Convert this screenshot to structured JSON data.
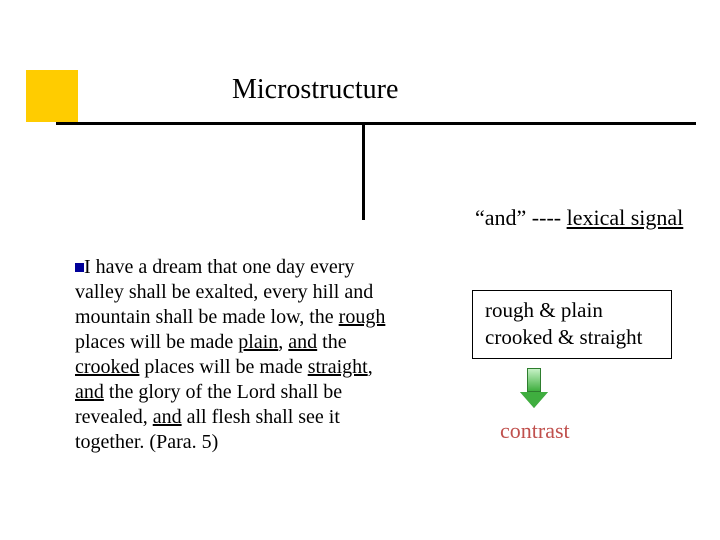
{
  "title": "Microstructure",
  "right_header_prefix": "“and” ---- ",
  "right_header_suffix": "lexical signal",
  "colors": {
    "accent_yellow": "#ffcc00",
    "bullet_navy": "#000099",
    "contrast_red": "#c0504d",
    "arrow_green": "#3fae3f",
    "text_black": "#000000"
  },
  "paragraph": {
    "segments": [
      {
        "t": "I have a dream that one day every valley shall be exalted, every hill and mountain shall be made low, the ",
        "u": false
      },
      {
        "t": "rough",
        "u": true
      },
      {
        "t": " places will be made ",
        "u": false
      },
      {
        "t": "plain",
        "u": true
      },
      {
        "t": ", ",
        "u": false
      },
      {
        "t": "and",
        "u": true
      },
      {
        "t": " the ",
        "u": false
      },
      {
        "t": "crooked",
        "u": true
      },
      {
        "t": " places will be made ",
        "u": false
      },
      {
        "t": "straight",
        "u": true
      },
      {
        "t": ", ",
        "u": false
      },
      {
        "t": "and",
        "u": true
      },
      {
        "t": " the glory of the Lord shall be revealed, ",
        "u": false
      },
      {
        "t": "and",
        "u": true
      },
      {
        "t": " all flesh shall see it together. (Para. 5)",
        "u": false
      }
    ]
  },
  "box_line1": "rough & plain",
  "box_line2": "crooked & straight",
  "contrast_label": "contrast"
}
